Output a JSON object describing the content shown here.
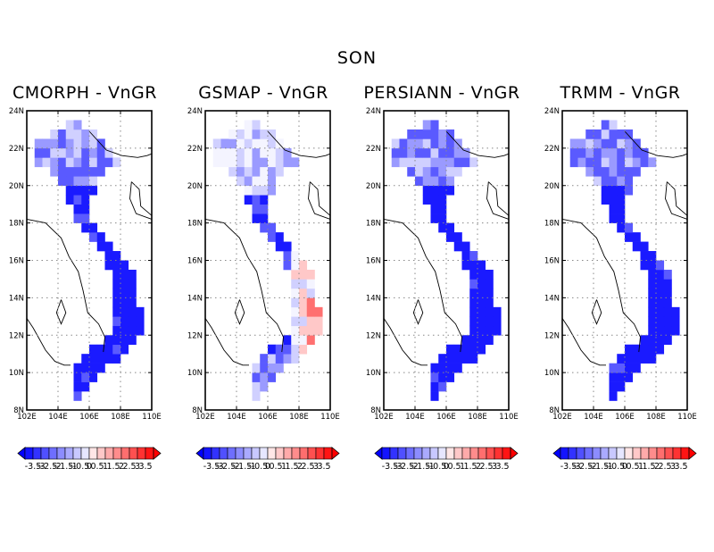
{
  "title": "SON",
  "panels": [
    {
      "title": "CMORPH - VnGR"
    },
    {
      "title": "GSMAP - VnGR"
    },
    {
      "title": "PERSIANN - VnGR"
    },
    {
      "title": "TRMM - VnGR"
    }
  ],
  "axes": {
    "x_ticks": [
      "102E",
      "104E",
      "106E",
      "108E",
      "110E"
    ],
    "y_ticks": [
      "24N",
      "22N",
      "20N",
      "18N",
      "16N",
      "14N",
      "12N",
      "10N",
      "8N"
    ],
    "lon_range": [
      102,
      110
    ],
    "lat_range": [
      8,
      24
    ],
    "grid": "dotted"
  },
  "colorbar": {
    "labels": [
      "-3.5",
      "-3",
      "-2.5",
      "-2",
      "-1.5",
      "-1",
      "-0.5",
      "0",
      "0.5",
      "1",
      "1.5",
      "2",
      "2.5",
      "3",
      "3.5"
    ],
    "colors": [
      "#1414ff",
      "#3232ff",
      "#5050ff",
      "#6e6eff",
      "#8c8cff",
      "#aaaaff",
      "#c8c8ff",
      "#e6e6ff",
      "#ffe6e6",
      "#ffc8c8",
      "#ffaaaa",
      "#ff8c8c",
      "#ff6e6e",
      "#ff5050",
      "#ff3232",
      "#ff1414"
    ],
    "under_color": "#0000ff",
    "over_color": "#ff0000"
  },
  "palette": {
    "deep_blue": "#1a1aff",
    "mid_blue": "#5a5aff",
    "light_blue": "#9a9aff",
    "pale_blue": "#d0d0ff",
    "white": "#f4f4ff",
    "pale_red": "#ffc8c8",
    "red": "#ff7070"
  }
}
